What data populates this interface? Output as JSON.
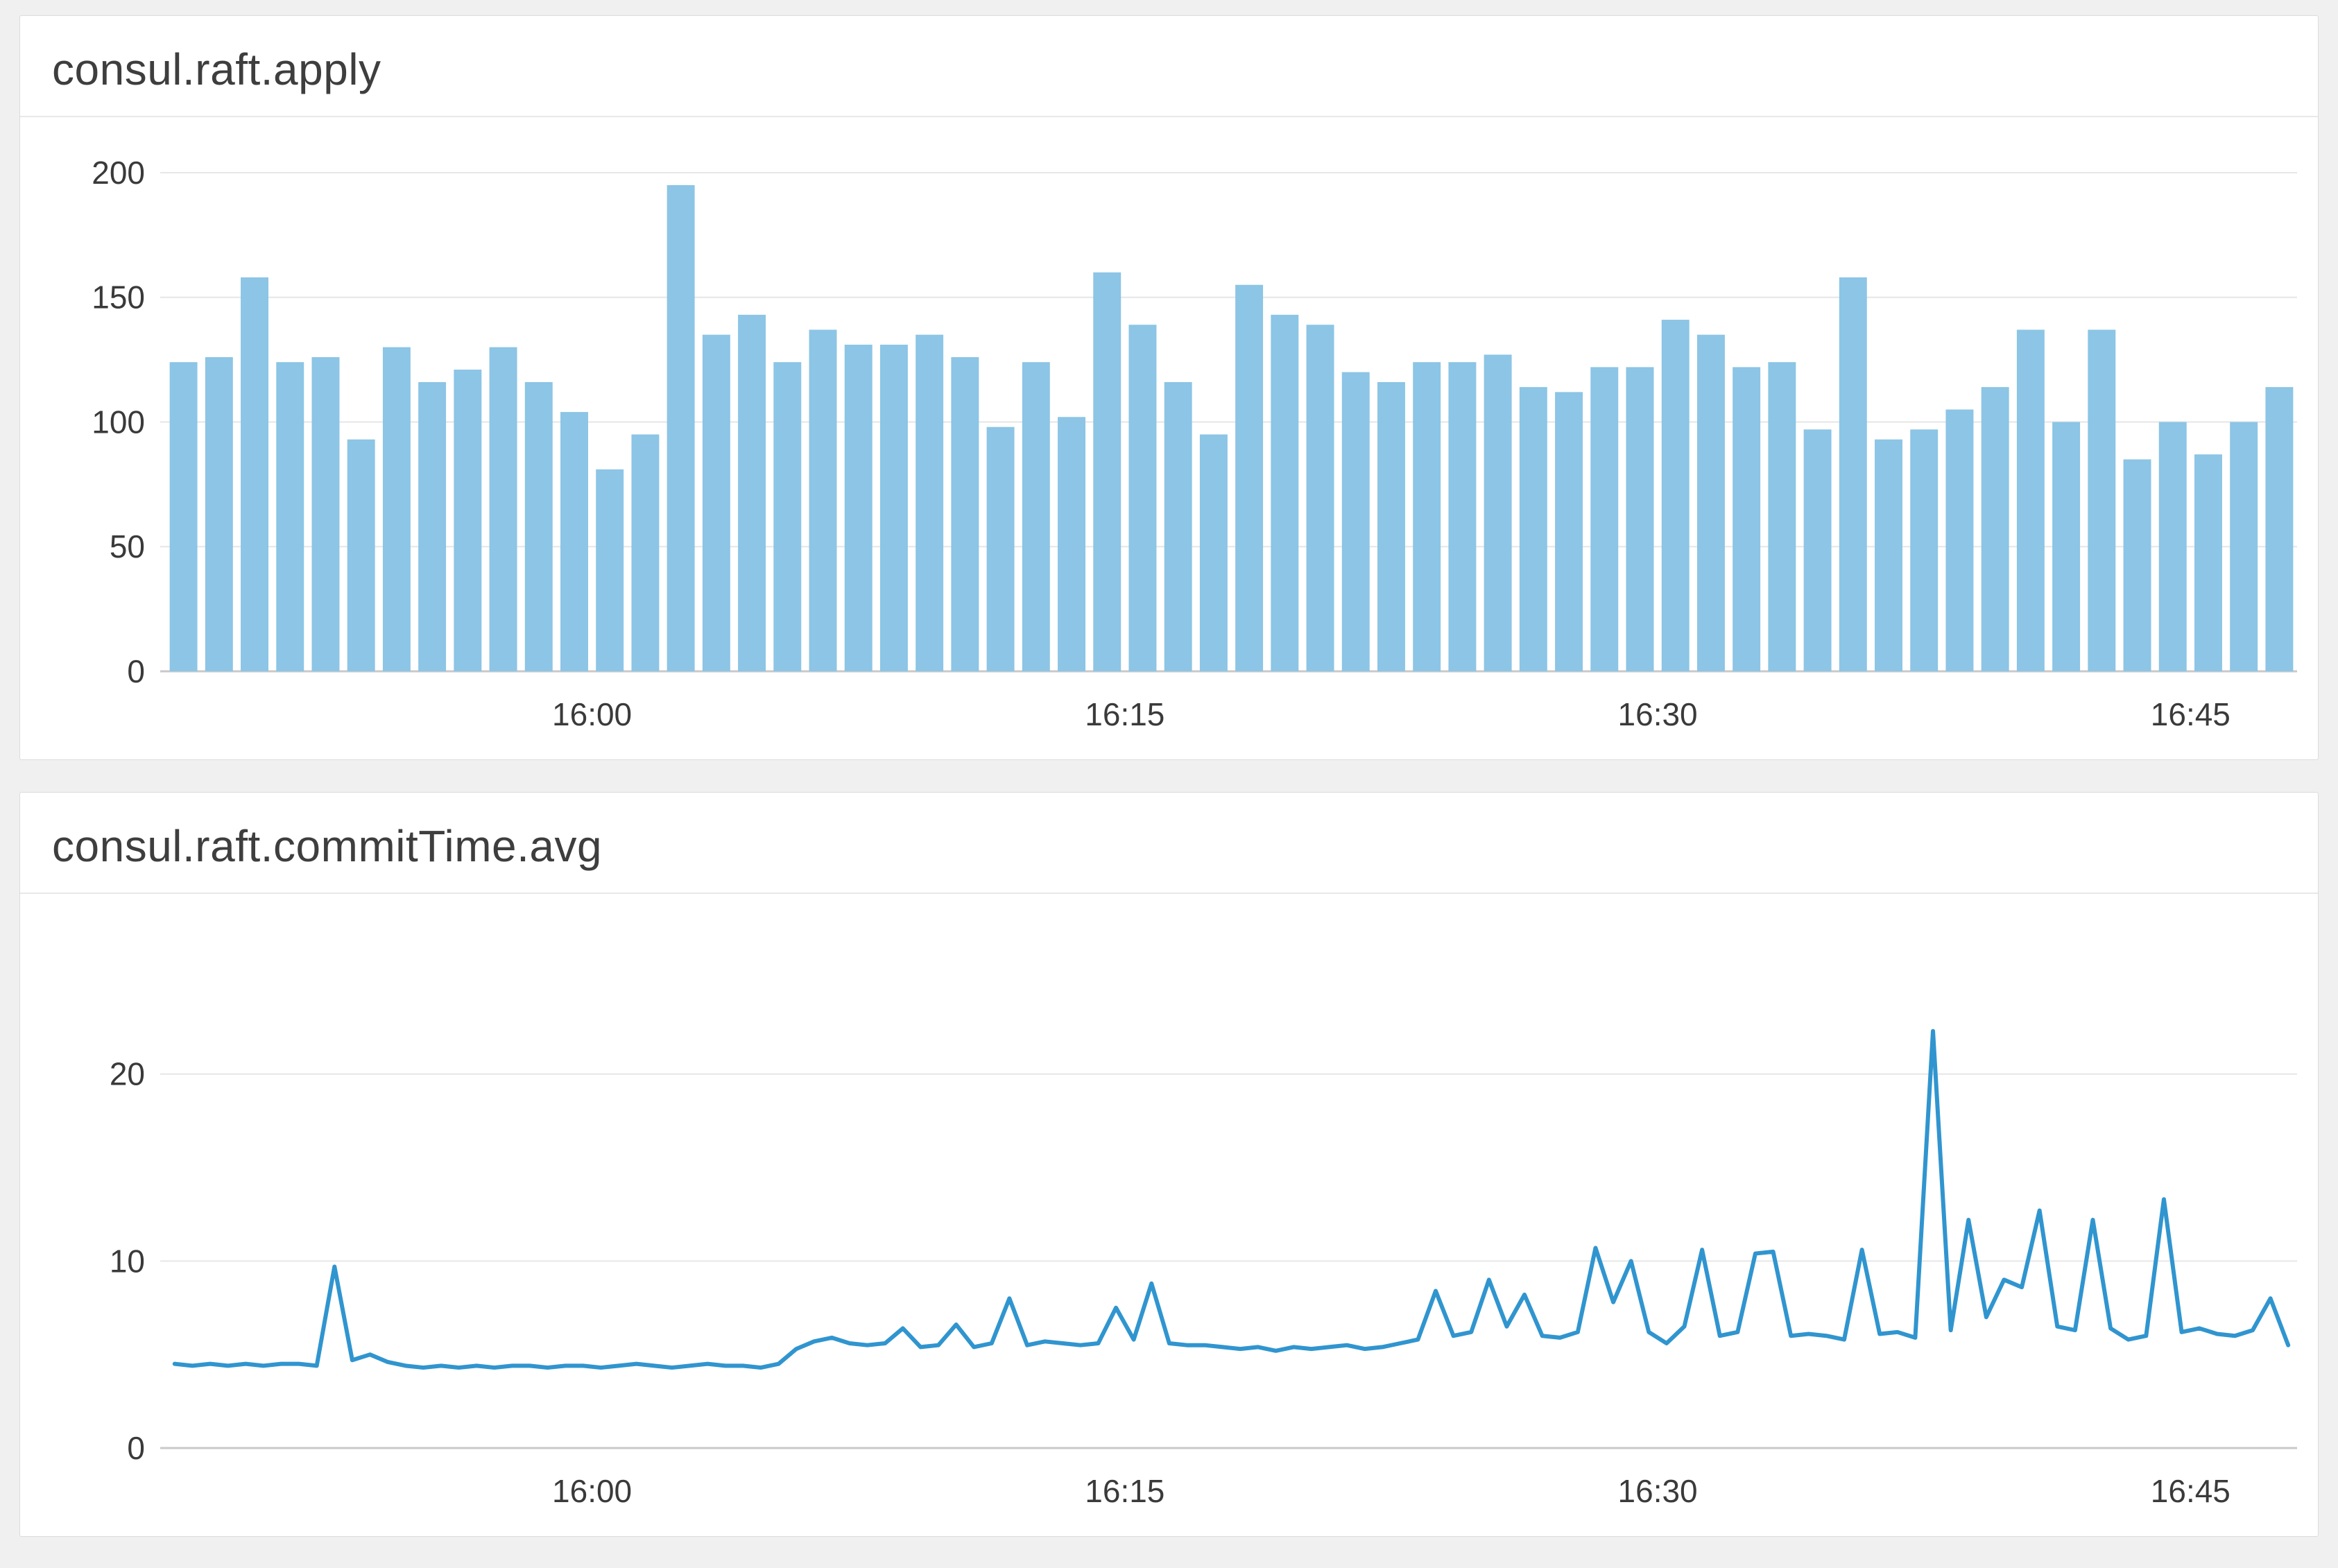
{
  "page": {
    "background": "#f0f0f1"
  },
  "chart_data": [
    {
      "type": "bar",
      "title": "consul.raft.apply",
      "xlabel": "",
      "ylabel": "",
      "start_time": "15:48",
      "interval_minutes": 1,
      "values": [
        124,
        126,
        158,
        124,
        126,
        93,
        130,
        116,
        121,
        130,
        116,
        104,
        81,
        95,
        195,
        135,
        143,
        124,
        137,
        131,
        131,
        135,
        126,
        98,
        124,
        102,
        160,
        139,
        116,
        95,
        155,
        143,
        139,
        120,
        116,
        124,
        124,
        127,
        114,
        112,
        122,
        122,
        141,
        135,
        122,
        124,
        97,
        158,
        93,
        97,
        105,
        114,
        137,
        100,
        137,
        85,
        100,
        87,
        100,
        114
      ],
      "ylim": [
        0,
        210
      ],
      "yticks": [
        0,
        50,
        100,
        150,
        200
      ],
      "xticks": [
        "16:00",
        "16:15",
        "16:30",
        "16:45"
      ],
      "bar_color": "#8cc5e5",
      "grid_color": "#e6e6e6",
      "baseline_color": "#c9c9c9",
      "legend": "none",
      "grid": true
    },
    {
      "type": "line",
      "title": "consul.raft.commitTime.avg",
      "xlabel": "",
      "ylabel": "",
      "start_time": "15:48",
      "interval_minutes": 0.5,
      "values": [
        4.5,
        4.4,
        4.5,
        4.4,
        4.5,
        4.4,
        4.5,
        4.5,
        4.4,
        9.7,
        4.7,
        5.0,
        4.6,
        4.4,
        4.3,
        4.4,
        4.3,
        4.4,
        4.3,
        4.4,
        4.4,
        4.3,
        4.4,
        4.4,
        4.3,
        4.4,
        4.5,
        4.4,
        4.3,
        4.4,
        4.5,
        4.4,
        4.4,
        4.3,
        4.5,
        5.3,
        5.7,
        5.9,
        5.6,
        5.5,
        5.6,
        6.4,
        5.4,
        5.5,
        6.6,
        5.4,
        5.6,
        8.0,
        5.5,
        5.7,
        5.6,
        5.5,
        5.6,
        7.5,
        5.8,
        8.8,
        5.6,
        5.5,
        5.5,
        5.4,
        5.3,
        5.4,
        5.2,
        5.4,
        5.3,
        5.4,
        5.5,
        5.3,
        5.4,
        5.6,
        5.8,
        8.4,
        6.0,
        6.2,
        9.0,
        6.5,
        8.2,
        6.0,
        5.9,
        6.2,
        10.7,
        7.8,
        10.0,
        6.2,
        5.6,
        6.5,
        10.6,
        6.0,
        6.2,
        10.4,
        10.5,
        6.0,
        6.1,
        6.0,
        5.8,
        10.6,
        6.1,
        6.2,
        5.9,
        22.3,
        6.3,
        12.2,
        7.0,
        9.0,
        8.6,
        12.7,
        6.5,
        6.3,
        12.2,
        6.4,
        5.8,
        6.0,
        13.3,
        6.2,
        6.4,
        6.1,
        6.0,
        6.3,
        8.0,
        5.5
      ],
      "ylim": [
        0,
        28
      ],
      "yticks": [
        0,
        10,
        20
      ],
      "xticks": [
        "16:00",
        "16:15",
        "16:30",
        "16:45"
      ],
      "line_color": "#3095cf",
      "grid_color": "#e6e6e6",
      "baseline_color": "#c9c9c9",
      "legend": "none",
      "grid": true
    }
  ]
}
